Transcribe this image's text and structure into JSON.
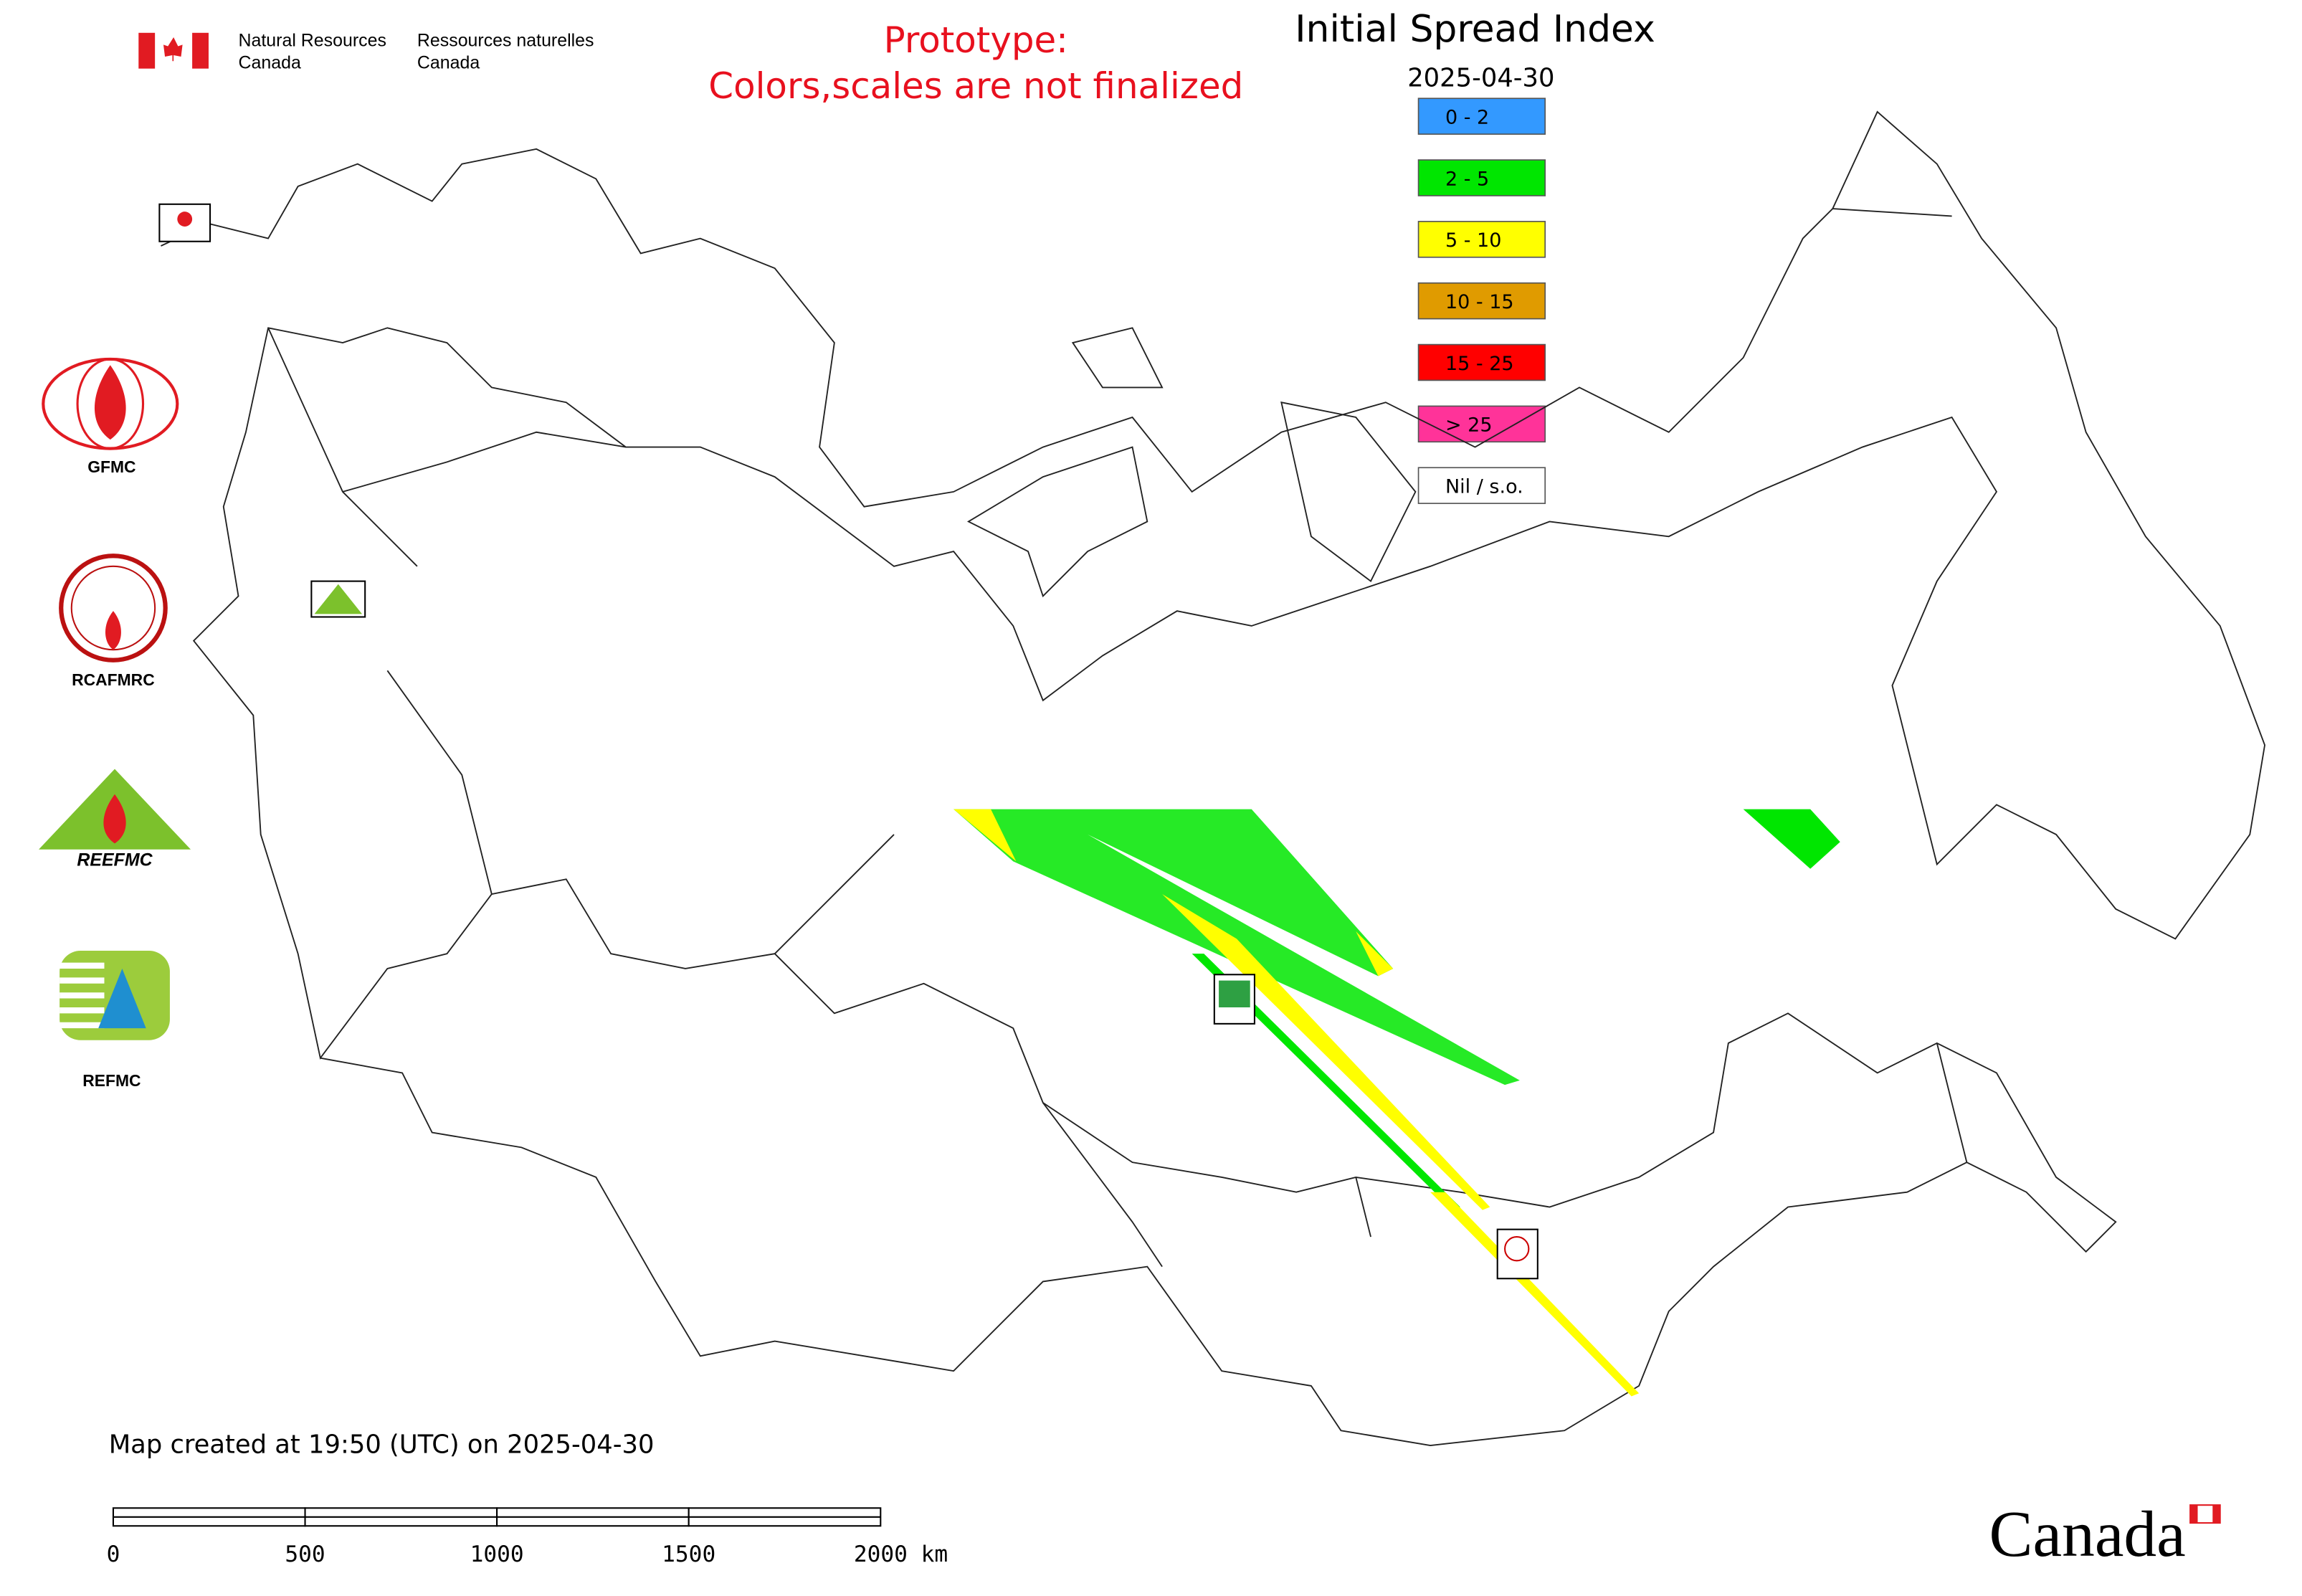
{
  "header": {
    "department_en": [
      "Natural Resources",
      "Canada"
    ],
    "department_fr": [
      "Ressources naturelles",
      "Canada"
    ]
  },
  "prototype_note": [
    "Prototype:",
    "Colors,scales are not finalized"
  ],
  "title": "Initial Spread Index",
  "date": "2025-04-30",
  "legend": [
    {
      "label": "0 - 2",
      "color": "#3399ff"
    },
    {
      "label": "2 - 5",
      "color": "#00e600"
    },
    {
      "label": "5 - 10",
      "color": "#ffff00"
    },
    {
      "label": "10 - 15",
      "color": "#e09b00"
    },
    {
      "label": "15 - 25",
      "color": "#ff0000"
    },
    {
      "label": "> 25",
      "color": "#ff3399"
    },
    {
      "label": "Nil / s.o.",
      "color": "#ffffff"
    }
  ],
  "logos": [
    "GFMC",
    "RCAFMRC",
    "REEFMC",
    "REFMC"
  ],
  "created": "Map created at 19:50 (UTC) on 2025-04-30",
  "scale_bar": [
    "0",
    "500",
    "1000",
    "1500",
    "2000 km"
  ],
  "wordmark": "Canada"
}
